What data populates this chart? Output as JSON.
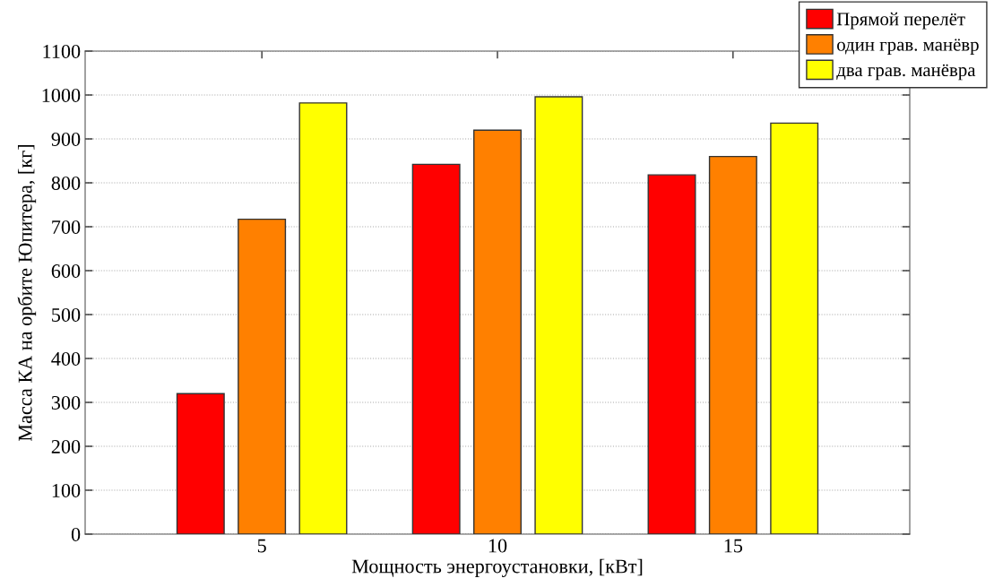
{
  "chart_data": {
    "type": "bar",
    "xlabel": "Мощность энергоустановки, [кВт]",
    "ylabel": "Масса КА на орбите Юпитера, [кг]",
    "categories": [
      "5",
      "10",
      "15"
    ],
    "series": [
      {
        "name": "Прямой перелёт",
        "color": "#ff0000",
        "values": [
          320,
          842,
          818
        ]
      },
      {
        "name": "один грав. манёвр",
        "color": "#ff8000",
        "values": [
          717,
          920,
          860
        ]
      },
      {
        "name": "два грав. манёвра",
        "color": "#ffff00",
        "values": [
          982,
          996,
          936
        ]
      }
    ],
    "ylim": [
      0,
      1100
    ],
    "yticks": [
      0,
      100,
      200,
      300,
      400,
      500,
      600,
      700,
      800,
      900,
      1000,
      1100
    ],
    "grid": "y",
    "legend": "top right"
  }
}
